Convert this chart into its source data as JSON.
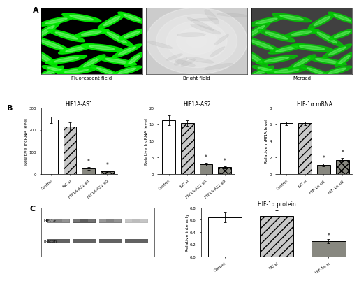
{
  "panel_A": {
    "labels": [
      "Fluorescent field",
      "Bright field",
      "Merged"
    ],
    "bg_colors": [
      "#000000",
      "#d8d8d8",
      "#303030"
    ],
    "cell_colors": [
      "#00ee00",
      "#888888",
      "#00cc00"
    ],
    "cell_alphas": [
      0.9,
      0.25,
      0.75
    ]
  },
  "panel_B": {
    "chart1": {
      "title": "HIF1A-AS1",
      "ylabel": "Relative lncRNA level",
      "categories": [
        "Control",
        "NC si",
        "HIF1A-AS1 si1",
        "HIF1A-AS1 si2"
      ],
      "values": [
        245,
        215,
        25,
        12
      ],
      "errors": [
        15,
        18,
        5,
        3
      ],
      "colors": [
        "white",
        "#c8c8c8",
        "#888880",
        "#888880"
      ],
      "hatches": [
        "",
        "///",
        "",
        "xxx"
      ],
      "ylim": [
        0,
        300
      ],
      "yticks": [
        0,
        100,
        200,
        300
      ],
      "sig_bars": [
        2,
        3
      ]
    },
    "chart2": {
      "title": "HIF1A-AS2",
      "ylabel": "Relative lncRNA level",
      "categories": [
        "Control",
        "NC si",
        "HIF1A-AS2 si1",
        "HIF1A-AS2 si2"
      ],
      "values": [
        16.2,
        15.3,
        3.0,
        2.0
      ],
      "errors": [
        1.5,
        0.8,
        0.4,
        0.3
      ],
      "colors": [
        "white",
        "#c8c8c8",
        "#888880",
        "#888880"
      ],
      "hatches": [
        "",
        "///",
        "",
        "xxx"
      ],
      "ylim": [
        0,
        20
      ],
      "yticks": [
        0,
        5,
        10,
        15,
        20
      ],
      "sig_bars": [
        2,
        3
      ]
    },
    "chart3": {
      "title": "HIF-1α mRNA",
      "ylabel": "Relative mRNA level",
      "categories": [
        "Control",
        "NC si",
        "HIF-1α si1",
        "HIF-1α si2"
      ],
      "values": [
        6.1,
        6.1,
        1.1,
        1.7
      ],
      "errors": [
        0.25,
        0.2,
        0.15,
        0.2
      ],
      "colors": [
        "white",
        "#c8c8c8",
        "#888880",
        "#888880"
      ],
      "hatches": [
        "",
        "///",
        "",
        "xxx"
      ],
      "ylim": [
        0,
        8
      ],
      "yticks": [
        0,
        2,
        4,
        6,
        8
      ],
      "sig_bars": [
        2,
        3
      ]
    }
  },
  "panel_C": {
    "western_labels": [
      "HIF-1α",
      "β-actin"
    ],
    "western_n_lanes": 4,
    "western_hif_intensities": [
      0.65,
      0.8,
      0.6,
      0.3
    ],
    "western_actin_intensities": [
      0.85,
      0.85,
      0.85,
      0.85
    ],
    "chart": {
      "title": "HIF-1α protein",
      "ylabel": "Relative intensity",
      "categories": [
        "Control",
        "NC si",
        "HIF-1α si"
      ],
      "values": [
        0.64,
        0.66,
        0.25
      ],
      "errors": [
        0.08,
        0.09,
        0.03
      ],
      "colors": [
        "white",
        "#c8c8c8",
        "#888880"
      ],
      "hatches": [
        "",
        "///",
        ""
      ],
      "ylim": [
        0.0,
        0.8
      ],
      "yticks": [
        0.0,
        0.2,
        0.4,
        0.6,
        0.8
      ],
      "sig_bars": [
        2
      ]
    }
  },
  "figure_bg": "white",
  "bar_edge_color": "black",
  "bar_linewidth": 0.7,
  "axis_fontsize": 5,
  "title_fontsize": 5.5,
  "ylabel_fontsize": 4.5,
  "tick_fontsize": 4.0,
  "panel_label_fontsize": 8
}
